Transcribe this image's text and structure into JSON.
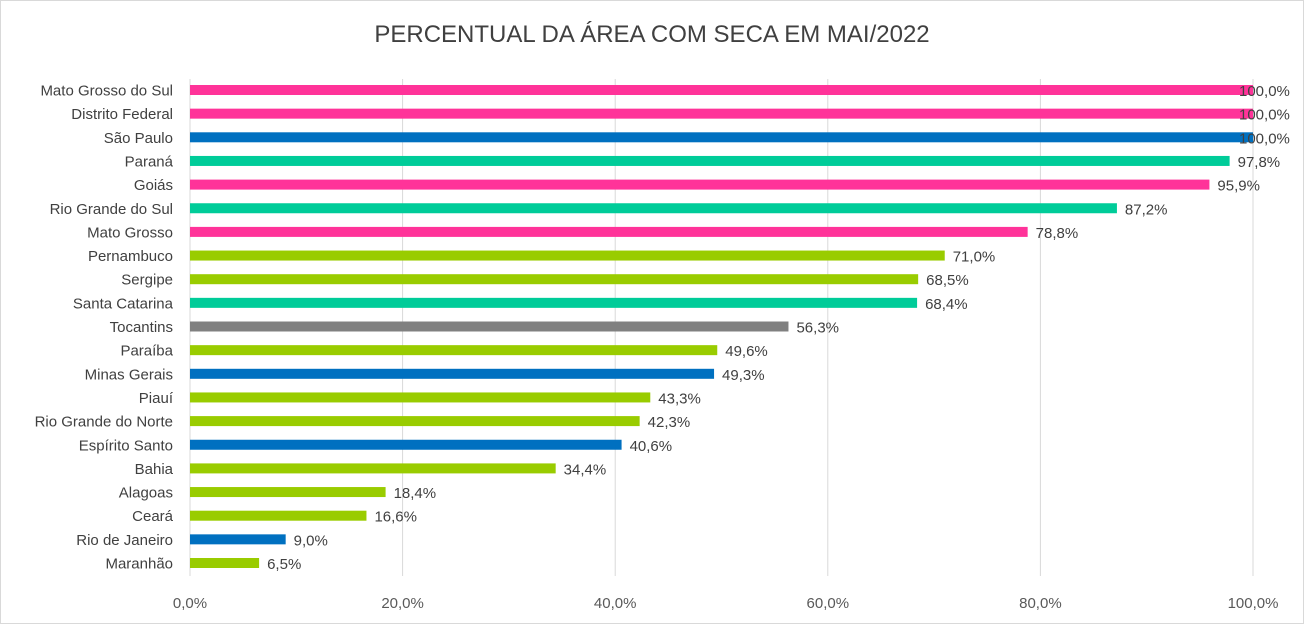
{
  "chart_data": {
    "type": "bar",
    "orientation": "horizontal",
    "title": "PERCENTUAL DA ÁREA COM SECA EM MAI/2022",
    "xlim": [
      0,
      100
    ],
    "xticks": [
      "0,0%",
      "20,0%",
      "40,0%",
      "60,0%",
      "80,0%",
      "100,0%"
    ],
    "grid": true,
    "legend": "none",
    "categories": [
      "Mato Grosso do Sul",
      "Distrito Federal",
      "São Paulo",
      "Paraná",
      "Goiás",
      "Rio Grande do Sul",
      "Mato Grosso",
      "Pernambuco",
      "Sergipe",
      "Santa Catarina",
      "Tocantins",
      "Paraíba",
      "Minas Gerais",
      "Piauí",
      "Rio Grande do Norte",
      "Espírito Santo",
      "Bahia",
      "Alagoas",
      "Ceará",
      "Rio de Janeiro",
      "Maranhão"
    ],
    "values": [
      100.0,
      100.0,
      100.0,
      97.8,
      95.9,
      87.2,
      78.8,
      71.0,
      68.5,
      68.4,
      56.3,
      49.6,
      49.3,
      43.3,
      42.3,
      40.6,
      34.4,
      18.4,
      16.6,
      9.0,
      6.5
    ],
    "labels": [
      "100,0%",
      "100,0%",
      "100,0%",
      "97,8%",
      "95,9%",
      "87,2%",
      "78,8%",
      "71,0%",
      "68,5%",
      "68,4%",
      "56,3%",
      "49,6%",
      "49,3%",
      "43,3%",
      "42,3%",
      "40,6%",
      "34,4%",
      "18,4%",
      "16,6%",
      "9,0%",
      "6,5%"
    ],
    "colors": [
      "#FF3399",
      "#FF3399",
      "#0070C0",
      "#00CC99",
      "#FF3399",
      "#00CC99",
      "#FF3399",
      "#99CC00",
      "#99CC00",
      "#00CC99",
      "#808080",
      "#99CC00",
      "#0070C0",
      "#99CC00",
      "#99CC00",
      "#0070C0",
      "#99CC00",
      "#99CC00",
      "#99CC00",
      "#0070C0",
      "#99CC00"
    ]
  }
}
